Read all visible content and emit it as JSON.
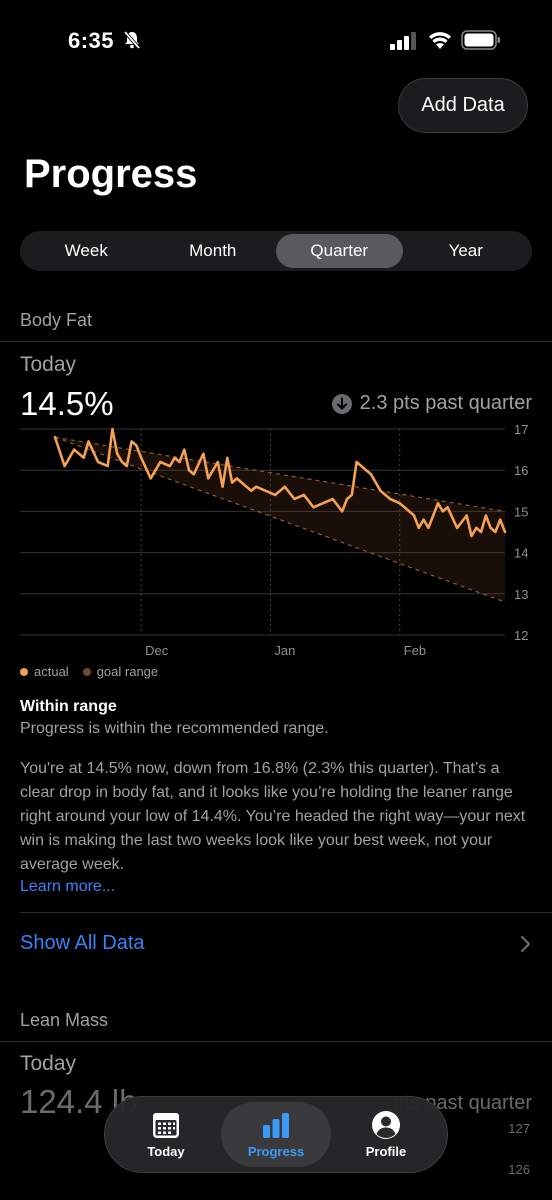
{
  "status": {
    "time": "6:35"
  },
  "header": {
    "add_data_label": "Add Data",
    "title": "Progress"
  },
  "segments": [
    {
      "label": "Week",
      "active": false
    },
    {
      "label": "Month",
      "active": false
    },
    {
      "label": "Quarter",
      "active": true
    },
    {
      "label": "Year",
      "active": false
    }
  ],
  "body_fat": {
    "section_label": "Body Fat",
    "today_label": "Today",
    "value": "14.5%",
    "delta": "2.3 pts past quarter",
    "legend": {
      "actual": "actual",
      "goal": "goal range"
    },
    "range_title": "Within range",
    "range_subtitle": "Progress is within the recommended range.",
    "summary": "You're at 14.5% now, down from 16.8% (2.3% this quarter). That’s a clear drop in body fat, and it looks like you’re holding the leaner range right around your low of 14.4%. You’re headed the right way—your next win is making the last two weeks look like your best week, not your average week.",
    "learn_more": "Learn more...",
    "show_all": "Show All Data"
  },
  "lean_mass": {
    "section_label": "Lean Mass",
    "today_label": "Today",
    "value": "124.4 lb",
    "delta": "pts past quarter",
    "ticks": [
      "127",
      "126"
    ]
  },
  "chart_data": {
    "type": "line",
    "y_ticks": [
      "17",
      "16",
      "15",
      "14",
      "13",
      "12"
    ],
    "x_ticks": [
      "Dec",
      "Jan",
      "Feb"
    ],
    "ylim": [
      12,
      17
    ],
    "series": [
      {
        "name": "actual",
        "x": [
          0,
          2,
          4,
          6,
          7,
          9,
          11,
          12,
          13,
          14,
          15,
          16,
          17,
          18,
          20,
          21,
          22,
          24,
          25,
          26,
          27,
          28,
          29,
          31,
          32,
          34,
          35,
          36,
          37,
          38,
          39,
          40,
          41,
          42,
          44,
          46,
          48,
          50,
          52,
          54,
          56,
          58,
          60,
          61,
          62,
          63,
          64,
          65,
          66,
          68,
          70,
          72,
          74,
          75,
          76,
          77,
          78,
          80,
          81,
          82,
          84,
          86,
          87,
          88,
          89,
          90,
          91,
          92,
          93,
          94
        ],
        "y": [
          16.8,
          16.1,
          16.5,
          16.3,
          16.7,
          16.2,
          16.1,
          17.0,
          16.4,
          16.2,
          16.1,
          16.7,
          16.6,
          16.3,
          15.8,
          16.0,
          16.2,
          16.1,
          16.3,
          16.2,
          16.5,
          16.0,
          15.9,
          16.4,
          15.8,
          16.2,
          15.6,
          16.3,
          15.7,
          15.8,
          15.7,
          15.6,
          15.5,
          15.6,
          15.5,
          15.4,
          15.6,
          15.3,
          15.4,
          15.1,
          15.2,
          15.3,
          15.0,
          15.3,
          15.4,
          16.2,
          16.1,
          16.0,
          15.9,
          15.5,
          15.3,
          15.2,
          15.0,
          14.9,
          14.6,
          14.8,
          14.6,
          15.2,
          15.0,
          15.1,
          14.6,
          14.9,
          14.4,
          14.6,
          14.5,
          14.9,
          14.6,
          14.5,
          14.8,
          14.5
        ]
      },
      {
        "name": "goal range",
        "upper": [
          16.8,
          15.0
        ],
        "lower": [
          16.8,
          12.8
        ]
      }
    ]
  }
}
